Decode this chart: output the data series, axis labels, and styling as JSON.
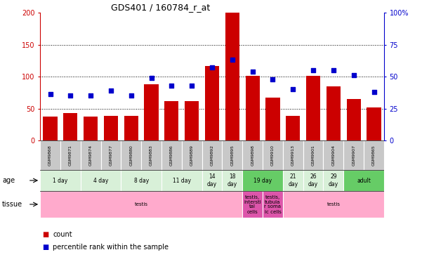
{
  "title": "GDS401 / 160784_r_at",
  "samples": [
    "GSM9868",
    "GSM9871",
    "GSM9874",
    "GSM9877",
    "GSM9880",
    "GSM9883",
    "GSM9886",
    "GSM9889",
    "GSM9892",
    "GSM9895",
    "GSM9898",
    "GSM9910",
    "GSM9913",
    "GSM9901",
    "GSM9904",
    "GSM9907",
    "GSM9865"
  ],
  "counts": [
    37,
    43,
    37,
    38,
    39,
    88,
    62,
    62,
    117,
    200,
    101,
    67,
    38,
    101,
    85,
    65,
    52
  ],
  "percentiles": [
    36,
    35,
    35,
    39,
    35,
    49,
    43,
    43,
    57,
    63,
    54,
    48,
    40,
    55,
    55,
    51,
    38
  ],
  "ylim_left": [
    0,
    200
  ],
  "ylim_right": [
    0,
    100
  ],
  "yticks_left": [
    0,
    50,
    100,
    150,
    200
  ],
  "yticks_right": [
    0,
    25,
    50,
    75,
    100
  ],
  "yticklabels_right": [
    "0",
    "25",
    "50",
    "75",
    "100%"
  ],
  "bar_color": "#cc0000",
  "dot_color": "#0000cc",
  "age_groups": [
    {
      "label": "1 day",
      "start": 0,
      "end": 2,
      "color": "#d8f0d8"
    },
    {
      "label": "4 day",
      "start": 2,
      "end": 4,
      "color": "#d8f0d8"
    },
    {
      "label": "8 day",
      "start": 4,
      "end": 6,
      "color": "#d8f0d8"
    },
    {
      "label": "11 day",
      "start": 6,
      "end": 8,
      "color": "#d8f0d8"
    },
    {
      "label": "14\nday",
      "start": 8,
      "end": 9,
      "color": "#d8f0d8"
    },
    {
      "label": "18\nday",
      "start": 9,
      "end": 10,
      "color": "#d8f0d8"
    },
    {
      "label": "19 day",
      "start": 10,
      "end": 12,
      "color": "#66cc66"
    },
    {
      "label": "21\nday",
      "start": 12,
      "end": 13,
      "color": "#d8f0d8"
    },
    {
      "label": "26\nday",
      "start": 13,
      "end": 14,
      "color": "#d8f0d8"
    },
    {
      "label": "29\nday",
      "start": 14,
      "end": 15,
      "color": "#d8f0d8"
    },
    {
      "label": "adult",
      "start": 15,
      "end": 17,
      "color": "#66cc66"
    }
  ],
  "tissue_groups": [
    {
      "label": "testis",
      "start": 0,
      "end": 10,
      "color": "#ffaacc"
    },
    {
      "label": "testis,\nintersti\ntal\ncells",
      "start": 10,
      "end": 11,
      "color": "#dd55aa"
    },
    {
      "label": "testis,\ntubula\nr soma\nic cells",
      "start": 11,
      "end": 12,
      "color": "#dd55aa"
    },
    {
      "label": "testis",
      "start": 12,
      "end": 17,
      "color": "#ffaacc"
    }
  ],
  "background_color": "#ffffff",
  "tick_label_bg": "#c8c8c8"
}
